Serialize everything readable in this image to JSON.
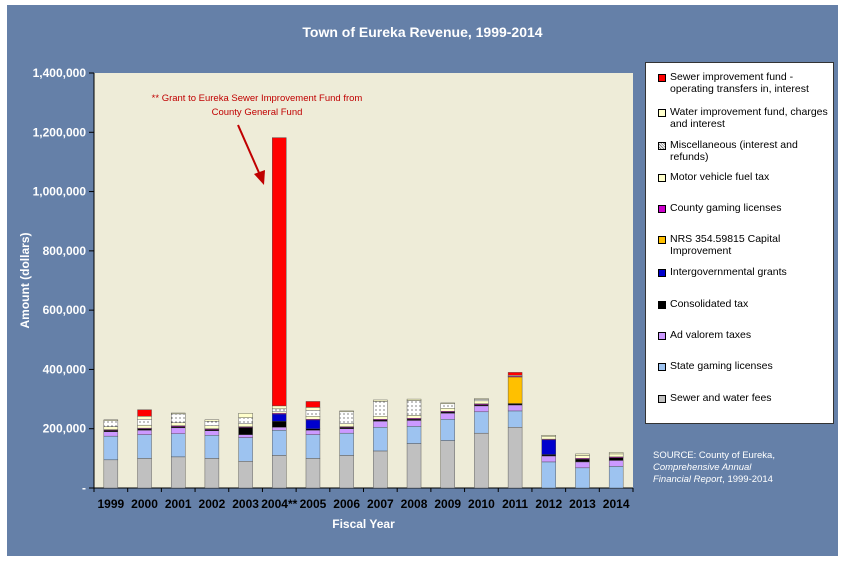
{
  "chart_data": {
    "type": "bar",
    "stacked": true,
    "title": "Town of Eureka  Revenue, 1999-2014",
    "xlabel": "Fiscal Year",
    "ylabel": "Amount (dollars)",
    "ylim": [
      0,
      1400000
    ],
    "yticks": [
      "-",
      "200,000",
      "400,000",
      "600,000",
      "800,000",
      "1,000,000",
      "1,200,000",
      "1,400,000"
    ],
    "grid": false,
    "legend_position": "right",
    "categories": [
      "1999",
      "2000",
      "2001",
      "2002",
      "2003",
      "2004**",
      "2005",
      "2006",
      "2007",
      "2008",
      "2009",
      "2010",
      "2011",
      "2012",
      "2013",
      "2014"
    ],
    "series": [
      {
        "name": "Sewer and water fees",
        "color": "#c0c0c0",
        "values": [
          95000,
          100000,
          105000,
          100000,
          90000,
          110000,
          100000,
          110000,
          125000,
          150000,
          160000,
          185000,
          205000,
          0,
          0,
          0
        ]
      },
      {
        "name": "State gaming licenses",
        "color": "#9dc3f0",
        "values": [
          80000,
          80000,
          78000,
          78000,
          80000,
          85000,
          80000,
          75000,
          80000,
          58000,
          72000,
          72000,
          55000,
          88000,
          68000,
          73000
        ]
      },
      {
        "name": "Ad valorem taxes",
        "color": "#cc99ff",
        "values": [
          15000,
          15000,
          20000,
          15000,
          10000,
          10000,
          15000,
          15000,
          20000,
          20000,
          20000,
          20000,
          20000,
          20000,
          20000,
          20000
        ]
      },
      {
        "name": "Consolidated tax",
        "color": "#000000",
        "values": [
          5000,
          5000,
          5000,
          5000,
          25000,
          20000,
          5000,
          5000,
          5000,
          5000,
          5000,
          5000,
          5000,
          5000,
          10000,
          10000
        ]
      },
      {
        "name": "Intergovernmental grants",
        "color": "#0000cc",
        "values": [
          0,
          0,
          0,
          0,
          0,
          25000,
          30000,
          0,
          0,
          0,
          0,
          0,
          0,
          50000,
          0,
          0
        ]
      },
      {
        "name": "NRS 354.59815 Capital Improvement",
        "color": "#ffc000",
        "values": [
          0,
          0,
          0,
          0,
          0,
          0,
          0,
          0,
          0,
          0,
          0,
          0,
          90000,
          0,
          0,
          0
        ]
      },
      {
        "name": "County gaming licenses",
        "color": "#cc00cc",
        "values": [
          2000,
          2000,
          2000,
          2000,
          2000,
          2000,
          2000,
          2000,
          2000,
          2000,
          2000,
          2000,
          2000,
          2000,
          2000,
          2000
        ]
      },
      {
        "name": "Motor vehicle fuel tax",
        "color": "#ffffcc",
        "values": [
          10000,
          10000,
          10000,
          10000,
          10000,
          5000,
          10000,
          10000,
          10000,
          10000,
          10000,
          10000,
          0,
          10000,
          10000,
          10000
        ]
      },
      {
        "name": "Miscellaneous (interest and refunds)",
        "color": "#ffffff",
        "values": [
          20000,
          20000,
          30000,
          15000,
          20000,
          10000,
          20000,
          40000,
          50000,
          50000,
          15000,
          5000,
          0,
          0,
          0,
          0
        ]
      },
      {
        "name": "Water improvement fund, charges and interest",
        "color": "#ffffcc",
        "values": [
          3000,
          10000,
          3000,
          5000,
          15000,
          10000,
          10000,
          3000,
          5000,
          5000,
          3000,
          3000,
          3000,
          3000,
          5000,
          5000
        ]
      },
      {
        "name": "Sewer improvement fund - operating transfers in, interest",
        "color": "#ff0000",
        "values": [
          0,
          22000,
          0,
          0,
          0,
          905000,
          20000,
          0,
          0,
          0,
          0,
          0,
          10000,
          0,
          0,
          0
        ]
      }
    ],
    "annotation": "** Grant to Eureka Sewer Improvement Fund from County General Fund"
  },
  "source": {
    "line1": "SOURCE: County of Eureka,",
    "line2": "Comprehensive Annual",
    "line3": "Financial Report",
    "line3_suffix": ", 1999-2014"
  }
}
